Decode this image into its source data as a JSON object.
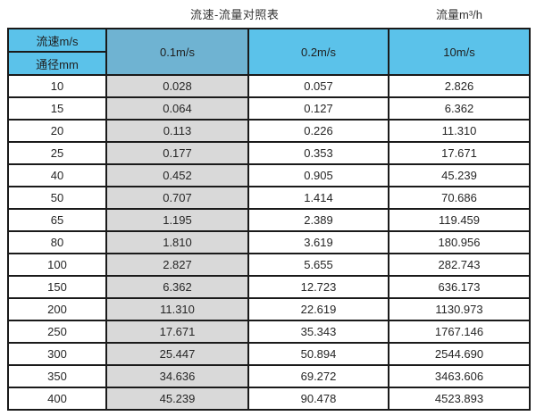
{
  "page": {
    "title_left": "流速-流量对照表",
    "title_right": "流量m³/h"
  },
  "table_header": {
    "corner_top": "流速m/s",
    "corner_bottom": "通径mm",
    "col_01": "0.1m/s",
    "col_02": "0.2m/s",
    "col_10": "10m/s"
  },
  "colors": {
    "header_blue": "#5bc2ea",
    "header_blue_dark": "#6fb3d2",
    "gray_column": "#d9d9d9",
    "border": "#1a1a1a",
    "text": "#262626"
  },
  "chart_data": {
    "type": "table",
    "title": "流速-流量对照表",
    "unit_label": "流量m³/h",
    "row_header_label": "通径mm",
    "col_header_label": "流速m/s",
    "columns": [
      "0.1m/s",
      "0.2m/s",
      "10m/s"
    ],
    "rows": [
      {
        "diameter_mm": "10",
        "values": [
          "0.028",
          "0.057",
          "2.826"
        ]
      },
      {
        "diameter_mm": "15",
        "values": [
          "0.064",
          "0.127",
          "6.362"
        ]
      },
      {
        "diameter_mm": "20",
        "values": [
          "0.113",
          "0.226",
          "11.310"
        ]
      },
      {
        "diameter_mm": "25",
        "values": [
          "0.177",
          "0.353",
          "17.671"
        ]
      },
      {
        "diameter_mm": "40",
        "values": [
          "0.452",
          "0.905",
          "45.239"
        ]
      },
      {
        "diameter_mm": "50",
        "values": [
          "0.707",
          "1.414",
          "70.686"
        ]
      },
      {
        "diameter_mm": "65",
        "values": [
          "1.195",
          "2.389",
          "119.459"
        ]
      },
      {
        "diameter_mm": "80",
        "values": [
          "1.810",
          "3.619",
          "180.956"
        ]
      },
      {
        "diameter_mm": "100",
        "values": [
          "2.827",
          "5.655",
          "282.743"
        ]
      },
      {
        "diameter_mm": "150",
        "values": [
          "6.362",
          "12.723",
          "636.173"
        ]
      },
      {
        "diameter_mm": "200",
        "values": [
          "11.310",
          "22.619",
          "1130.973"
        ]
      },
      {
        "diameter_mm": "250",
        "values": [
          "17.671",
          "35.343",
          "1767.146"
        ]
      },
      {
        "diameter_mm": "300",
        "values": [
          "25.447",
          "50.894",
          "2544.690"
        ]
      },
      {
        "diameter_mm": "350",
        "values": [
          "34.636",
          "69.272",
          "3463.606"
        ]
      },
      {
        "diameter_mm": "400",
        "values": [
          "45.239",
          "90.478",
          "4523.893"
        ]
      }
    ]
  }
}
